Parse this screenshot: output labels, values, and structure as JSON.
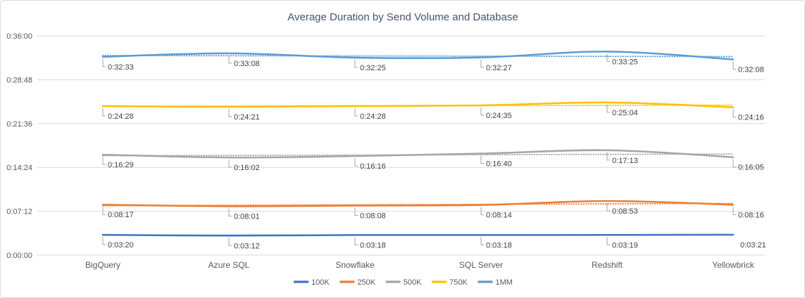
{
  "chart_data": {
    "type": "line",
    "title": "Average Duration by Send Volume and Database",
    "categories": [
      "BigQuery",
      "Azure SQL",
      "Snowflake",
      "SQL Server",
      "Redshift",
      "Yellowbrick"
    ],
    "series": [
      {
        "name": "100K",
        "color": "#4472C4",
        "labels": [
          "0:03:20",
          "0:03:12",
          "0:03:18",
          "0:03:18",
          "0:03:19",
          "0:03:21"
        ],
        "values_seconds": [
          200,
          192,
          198,
          198,
          199,
          201
        ]
      },
      {
        "name": "250K",
        "color": "#ED7D31",
        "labels": [
          "0:08:17",
          "0:08:01",
          "0:08:08",
          "0:08:14",
          "0:08:53",
          "0:08:16"
        ],
        "values_seconds": [
          497,
          481,
          488,
          494,
          533,
          496
        ]
      },
      {
        "name": "500K",
        "color": "#A5A5A5",
        "labels": [
          "0:16:29",
          "0:16:02",
          "0:16:16",
          "0:16:40",
          "0:17:13",
          "0:16:05"
        ],
        "values_seconds": [
          989,
          962,
          976,
          1000,
          1033,
          965
        ]
      },
      {
        "name": "750K",
        "color": "#FFC000",
        "labels": [
          "0:24:28",
          "0:24:21",
          "0:24:28",
          "0:24:35",
          "0:25:04",
          "0:24:16"
        ],
        "values_seconds": [
          1468,
          1461,
          1468,
          1475,
          1504,
          1456
        ]
      },
      {
        "name": "1MM",
        "color": "#5B9BD5",
        "labels": [
          "0:32:33",
          "0:33:08",
          "0:32:25",
          "0:32:27",
          "0:33:25",
          "0:32:08"
        ],
        "values_seconds": [
          1953,
          1988,
          1945,
          1947,
          2005,
          1928
        ]
      }
    ],
    "y_axis": {
      "tick_labels": [
        "0:00:00",
        "0:07:12",
        "0:14:24",
        "0:21:36",
        "0:28:48",
        "0:36:00"
      ],
      "tick_seconds": [
        0,
        432,
        864,
        1296,
        1728,
        2160
      ],
      "min_seconds": 0,
      "max_seconds": 2160
    },
    "legend": [
      "100K",
      "250K",
      "500K",
      "750K",
      "1MM"
    ],
    "legend_position": "bottom",
    "gridlines": "horizontal",
    "trendlines": "linear-dotted-per-series",
    "labels_without_leader": [
      {
        "series": "100K",
        "index": 5
      }
    ]
  },
  "colors": {
    "background": "#FFFFFF",
    "frame_border": "#D9D9D9",
    "grid": "#D9D9D9",
    "axis_text": "#595959",
    "category_text": "#595959",
    "data_label_text": "#404040",
    "leader_line": "#A6A6A6",
    "title_text": "#44546A"
  }
}
